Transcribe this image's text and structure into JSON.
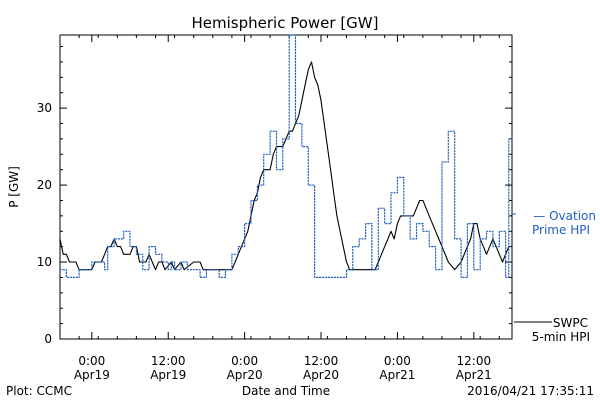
{
  "chart_data": {
    "type": "line",
    "title": "Hemispheric Power [GW]",
    "xlabel": "Date and Time",
    "ylabel": "P [GW]",
    "ylim": [
      0,
      39.5
    ],
    "yticks": [
      0,
      10,
      20,
      30
    ],
    "xlim": [
      "2016-04-18T19:00",
      "2016-04-21T18:00"
    ],
    "xticks": [
      {
        "t": "2016-04-19T00:00",
        "line1": "0:00",
        "line2": "Apr19"
      },
      {
        "t": "2016-04-19T12:00",
        "line1": "12:00",
        "line2": "Apr19"
      },
      {
        "t": "2016-04-20T00:00",
        "line1": "0:00",
        "line2": "Apr20"
      },
      {
        "t": "2016-04-20T12:00",
        "line1": "12:00",
        "line2": "Apr20"
      },
      {
        "t": "2016-04-21T00:00",
        "line1": "0:00",
        "line2": "Apr21"
      },
      {
        "t": "2016-04-21T12:00",
        "line1": "12:00",
        "line2": "Apr21"
      }
    ],
    "grid": false,
    "series": [
      {
        "name": "SWPC 5-min HPI",
        "color": "#000000",
        "style": "solid",
        "step": false,
        "points": [
          [
            "2016-04-18T19:00",
            13
          ],
          [
            "2016-04-18T19:30",
            11
          ],
          [
            "2016-04-18T20:00",
            11
          ],
          [
            "2016-04-18T20:30",
            10
          ],
          [
            "2016-04-18T21:30",
            10
          ],
          [
            "2016-04-18T22:00",
            9
          ],
          [
            "2016-04-19T00:00",
            9
          ],
          [
            "2016-04-19T00:30",
            10
          ],
          [
            "2016-04-19T01:30",
            10
          ],
          [
            "2016-04-19T02:00",
            11
          ],
          [
            "2016-04-19T02:30",
            12
          ],
          [
            "2016-04-19T03:00",
            12
          ],
          [
            "2016-04-19T03:30",
            13
          ],
          [
            "2016-04-19T04:00",
            12
          ],
          [
            "2016-04-19T04:30",
            12
          ],
          [
            "2016-04-19T05:00",
            11
          ],
          [
            "2016-04-19T06:00",
            11
          ],
          [
            "2016-04-19T06:30",
            12
          ],
          [
            "2016-04-19T07:00",
            12
          ],
          [
            "2016-04-19T07:30",
            10
          ],
          [
            "2016-04-19T08:30",
            10
          ],
          [
            "2016-04-19T09:00",
            11
          ],
          [
            "2016-04-19T09:30",
            10
          ],
          [
            "2016-04-19T10:00",
            9
          ],
          [
            "2016-04-19T10:30",
            10
          ],
          [
            "2016-04-19T11:00",
            10
          ],
          [
            "2016-04-19T11:30",
            9
          ],
          [
            "2016-04-19T12:30",
            10
          ],
          [
            "2016-04-19T13:00",
            9
          ],
          [
            "2016-04-19T14:00",
            10
          ],
          [
            "2016-04-19T14:30",
            9
          ],
          [
            "2016-04-19T16:00",
            10
          ],
          [
            "2016-04-19T17:00",
            10
          ],
          [
            "2016-04-19T17:30",
            9
          ],
          [
            "2016-04-19T22:00",
            9
          ],
          [
            "2016-04-19T22:30",
            10
          ],
          [
            "2016-04-19T23:00",
            11
          ],
          [
            "2016-04-19T23:30",
            12
          ],
          [
            "2016-04-20T00:00",
            13
          ],
          [
            "2016-04-20T00:30",
            14
          ],
          [
            "2016-04-20T01:00",
            16
          ],
          [
            "2016-04-20T01:30",
            18
          ],
          [
            "2016-04-20T02:00",
            19
          ],
          [
            "2016-04-20T02:30",
            21
          ],
          [
            "2016-04-20T03:00",
            22
          ],
          [
            "2016-04-20T04:00",
            22
          ],
          [
            "2016-04-20T04:30",
            24
          ],
          [
            "2016-04-20T05:00",
            25
          ],
          [
            "2016-04-20T06:00",
            25
          ],
          [
            "2016-04-20T06:30",
            26
          ],
          [
            "2016-04-20T07:00",
            27
          ],
          [
            "2016-04-20T07:30",
            27
          ],
          [
            "2016-04-20T08:00",
            28
          ],
          [
            "2016-04-20T08:30",
            29
          ],
          [
            "2016-04-20T09:00",
            31
          ],
          [
            "2016-04-20T09:30",
            33
          ],
          [
            "2016-04-20T10:00",
            35
          ],
          [
            "2016-04-20T10:30",
            36
          ],
          [
            "2016-04-20T11:00",
            34
          ],
          [
            "2016-04-20T11:30",
            33
          ],
          [
            "2016-04-20T12:00",
            31
          ],
          [
            "2016-04-20T12:30",
            28
          ],
          [
            "2016-04-20T13:00",
            25
          ],
          [
            "2016-04-20T13:30",
            22
          ],
          [
            "2016-04-20T14:00",
            19
          ],
          [
            "2016-04-20T14:30",
            16
          ],
          [
            "2016-04-20T15:00",
            14
          ],
          [
            "2016-04-20T15:30",
            12
          ],
          [
            "2016-04-20T16:00",
            10
          ],
          [
            "2016-04-20T16:30",
            9
          ],
          [
            "2016-04-20T20:30",
            9
          ],
          [
            "2016-04-20T21:00",
            10
          ],
          [
            "2016-04-20T21:30",
            11
          ],
          [
            "2016-04-20T22:00",
            12
          ],
          [
            "2016-04-20T22:30",
            13
          ],
          [
            "2016-04-20T23:00",
            14
          ],
          [
            "2016-04-20T23:30",
            13
          ],
          [
            "2016-04-21T00:00",
            15
          ],
          [
            "2016-04-21T00:30",
            16
          ],
          [
            "2016-04-21T02:30",
            16
          ],
          [
            "2016-04-21T03:00",
            17
          ],
          [
            "2016-04-21T03:30",
            18
          ],
          [
            "2016-04-21T04:00",
            18
          ],
          [
            "2016-04-21T04:30",
            17
          ],
          [
            "2016-04-21T05:00",
            16
          ],
          [
            "2016-04-21T05:30",
            15
          ],
          [
            "2016-04-21T06:00",
            14
          ],
          [
            "2016-04-21T06:30",
            13
          ],
          [
            "2016-04-21T07:00",
            12
          ],
          [
            "2016-04-21T07:30",
            11
          ],
          [
            "2016-04-21T08:00",
            10
          ],
          [
            "2016-04-21T09:00",
            9
          ],
          [
            "2016-04-21T10:00",
            10
          ],
          [
            "2016-04-21T11:00",
            12
          ],
          [
            "2016-04-21T11:30",
            13
          ],
          [
            "2016-04-21T12:00",
            15
          ],
          [
            "2016-04-21T12:30",
            15
          ],
          [
            "2016-04-21T13:00",
            13
          ],
          [
            "2016-04-21T13:30",
            12
          ],
          [
            "2016-04-21T14:00",
            11
          ],
          [
            "2016-04-21T14:30",
            12
          ],
          [
            "2016-04-21T15:00",
            13
          ],
          [
            "2016-04-21T15:30",
            12
          ],
          [
            "2016-04-21T16:00",
            11
          ],
          [
            "2016-04-21T16:30",
            10
          ],
          [
            "2016-04-21T17:00",
            11
          ],
          [
            "2016-04-21T17:30",
            12
          ]
        ]
      },
      {
        "name": "Ovation Prime HPI",
        "color": "#1f5fbf",
        "style": "dotted",
        "step": true,
        "points": [
          [
            "2016-04-18T19:00",
            9
          ],
          [
            "2016-04-18T20:00",
            8
          ],
          [
            "2016-04-18T22:00",
            9
          ],
          [
            "2016-04-19T00:00",
            10
          ],
          [
            "2016-04-19T01:30",
            10
          ],
          [
            "2016-04-19T02:00",
            9
          ],
          [
            "2016-04-19T02:30",
            12
          ],
          [
            "2016-04-19T03:30",
            13
          ],
          [
            "2016-04-19T05:00",
            14
          ],
          [
            "2016-04-19T06:00",
            12
          ],
          [
            "2016-04-19T07:00",
            11
          ],
          [
            "2016-04-19T08:00",
            9
          ],
          [
            "2016-04-19T09:00",
            12
          ],
          [
            "2016-04-19T10:00",
            11
          ],
          [
            "2016-04-19T11:00",
            10
          ],
          [
            "2016-04-19T12:00",
            9
          ],
          [
            "2016-04-19T12:30",
            10
          ],
          [
            "2016-04-19T13:00",
            9
          ],
          [
            "2016-04-19T14:00",
            10
          ],
          [
            "2016-04-19T15:00",
            9
          ],
          [
            "2016-04-19T17:00",
            8
          ],
          [
            "2016-04-19T18:00",
            9
          ],
          [
            "2016-04-19T20:00",
            8
          ],
          [
            "2016-04-19T21:00",
            9
          ],
          [
            "2016-04-19T22:00",
            11
          ],
          [
            "2016-04-19T23:00",
            12
          ],
          [
            "2016-04-20T00:00",
            15
          ],
          [
            "2016-04-20T01:00",
            18
          ],
          [
            "2016-04-20T02:00",
            20
          ],
          [
            "2016-04-20T03:00",
            24
          ],
          [
            "2016-04-20T04:00",
            27
          ],
          [
            "2016-04-20T05:00",
            22
          ],
          [
            "2016-04-20T06:00",
            26
          ],
          [
            "2016-04-20T07:00",
            40
          ],
          [
            "2016-04-20T08:00",
            28
          ],
          [
            "2016-04-20T09:00",
            25
          ],
          [
            "2016-04-20T10:00",
            20
          ],
          [
            "2016-04-20T11:00",
            8
          ],
          [
            "2016-04-20T16:00",
            9
          ],
          [
            "2016-04-20T17:00",
            12
          ],
          [
            "2016-04-20T18:00",
            13
          ],
          [
            "2016-04-20T19:00",
            15
          ],
          [
            "2016-04-20T20:00",
            9
          ],
          [
            "2016-04-20T21:00",
            17
          ],
          [
            "2016-04-20T22:00",
            15
          ],
          [
            "2016-04-20T23:00",
            19
          ],
          [
            "2016-04-21T00:00",
            21
          ],
          [
            "2016-04-21T01:00",
            16
          ],
          [
            "2016-04-21T02:00",
            13
          ],
          [
            "2016-04-21T03:00",
            15
          ],
          [
            "2016-04-21T04:00",
            14
          ],
          [
            "2016-04-21T05:00",
            12
          ],
          [
            "2016-04-21T06:00",
            9
          ],
          [
            "2016-04-21T07:00",
            23
          ],
          [
            "2016-04-21T08:00",
            27
          ],
          [
            "2016-04-21T09:00",
            13
          ],
          [
            "2016-04-21T10:00",
            8
          ],
          [
            "2016-04-21T11:00",
            15
          ],
          [
            "2016-04-21T12:00",
            9
          ],
          [
            "2016-04-21T13:00",
            13
          ],
          [
            "2016-04-21T14:00",
            14
          ],
          [
            "2016-04-21T15:00",
            12
          ],
          [
            "2016-04-21T16:00",
            14
          ],
          [
            "2016-04-21T17:00",
            8
          ],
          [
            "2016-04-21T17:30",
            26
          ],
          [
            "2016-04-21T18:00",
            26
          ]
        ]
      }
    ],
    "legend": {
      "position": "right",
      "ovation_line1": "— Ovation",
      "ovation_line2": "Prime HPI",
      "swpc_line1": "SWPC",
      "swpc_line2": "5-min HPI"
    }
  },
  "footer": {
    "plot_credit": "Plot: CCMC",
    "timestamp": "2016/04/21 17:35:11"
  }
}
